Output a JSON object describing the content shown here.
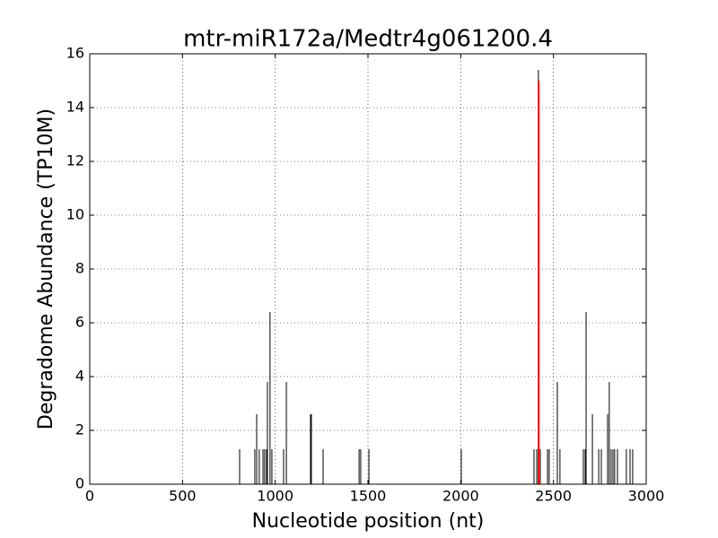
{
  "chart_data": {
    "type": "vlines",
    "title": "mtr-miR172a/Medtr4g061200.4",
    "xlabel": "Nucleotide position (nt)",
    "ylabel": "Degradome Abundance (TP10M)",
    "xlim": [
      0,
      3000
    ],
    "xticks": [
      0,
      500,
      1000,
      1500,
      2000,
      2500,
      3000
    ],
    "ylim": [
      0,
      16
    ],
    "yticks": [
      0,
      2,
      4,
      6,
      8,
      10,
      12,
      14,
      16
    ],
    "grid": true,
    "series": [
      {
        "color": "#000000",
        "x": [
          808,
          890,
          900,
          914,
          934,
          943,
          953,
          958,
          972,
          982,
          1045,
          1060,
          1190,
          1195,
          1258,
          1452,
          1461,
          1505,
          2003,
          2395,
          2410,
          2419,
          2429,
          2468,
          2477,
          2521,
          2535,
          2661,
          2671,
          2676,
          2710,
          2744,
          2758,
          2792,
          2801,
          2811,
          2821,
          2830,
          2845,
          2893,
          2913,
          2927
        ],
        "values": [
          1.3,
          1.3,
          2.6,
          1.3,
          1.3,
          1.3,
          1.3,
          3.8,
          6.4,
          1.3,
          1.3,
          3.8,
          2.6,
          2.6,
          1.3,
          1.3,
          1.3,
          1.3,
          1.3,
          1.3,
          1.3,
          15.4,
          1.3,
          1.3,
          1.3,
          3.8,
          1.3,
          1.3,
          1.3,
          6.4,
          2.6,
          1.3,
          1.3,
          2.6,
          3.8,
          1.3,
          1.3,
          1.3,
          1.3,
          1.3,
          1.3,
          1.3
        ]
      },
      {
        "color": "#ff0000",
        "x": [
          2420
        ],
        "values": [
          15
        ]
      }
    ]
  }
}
